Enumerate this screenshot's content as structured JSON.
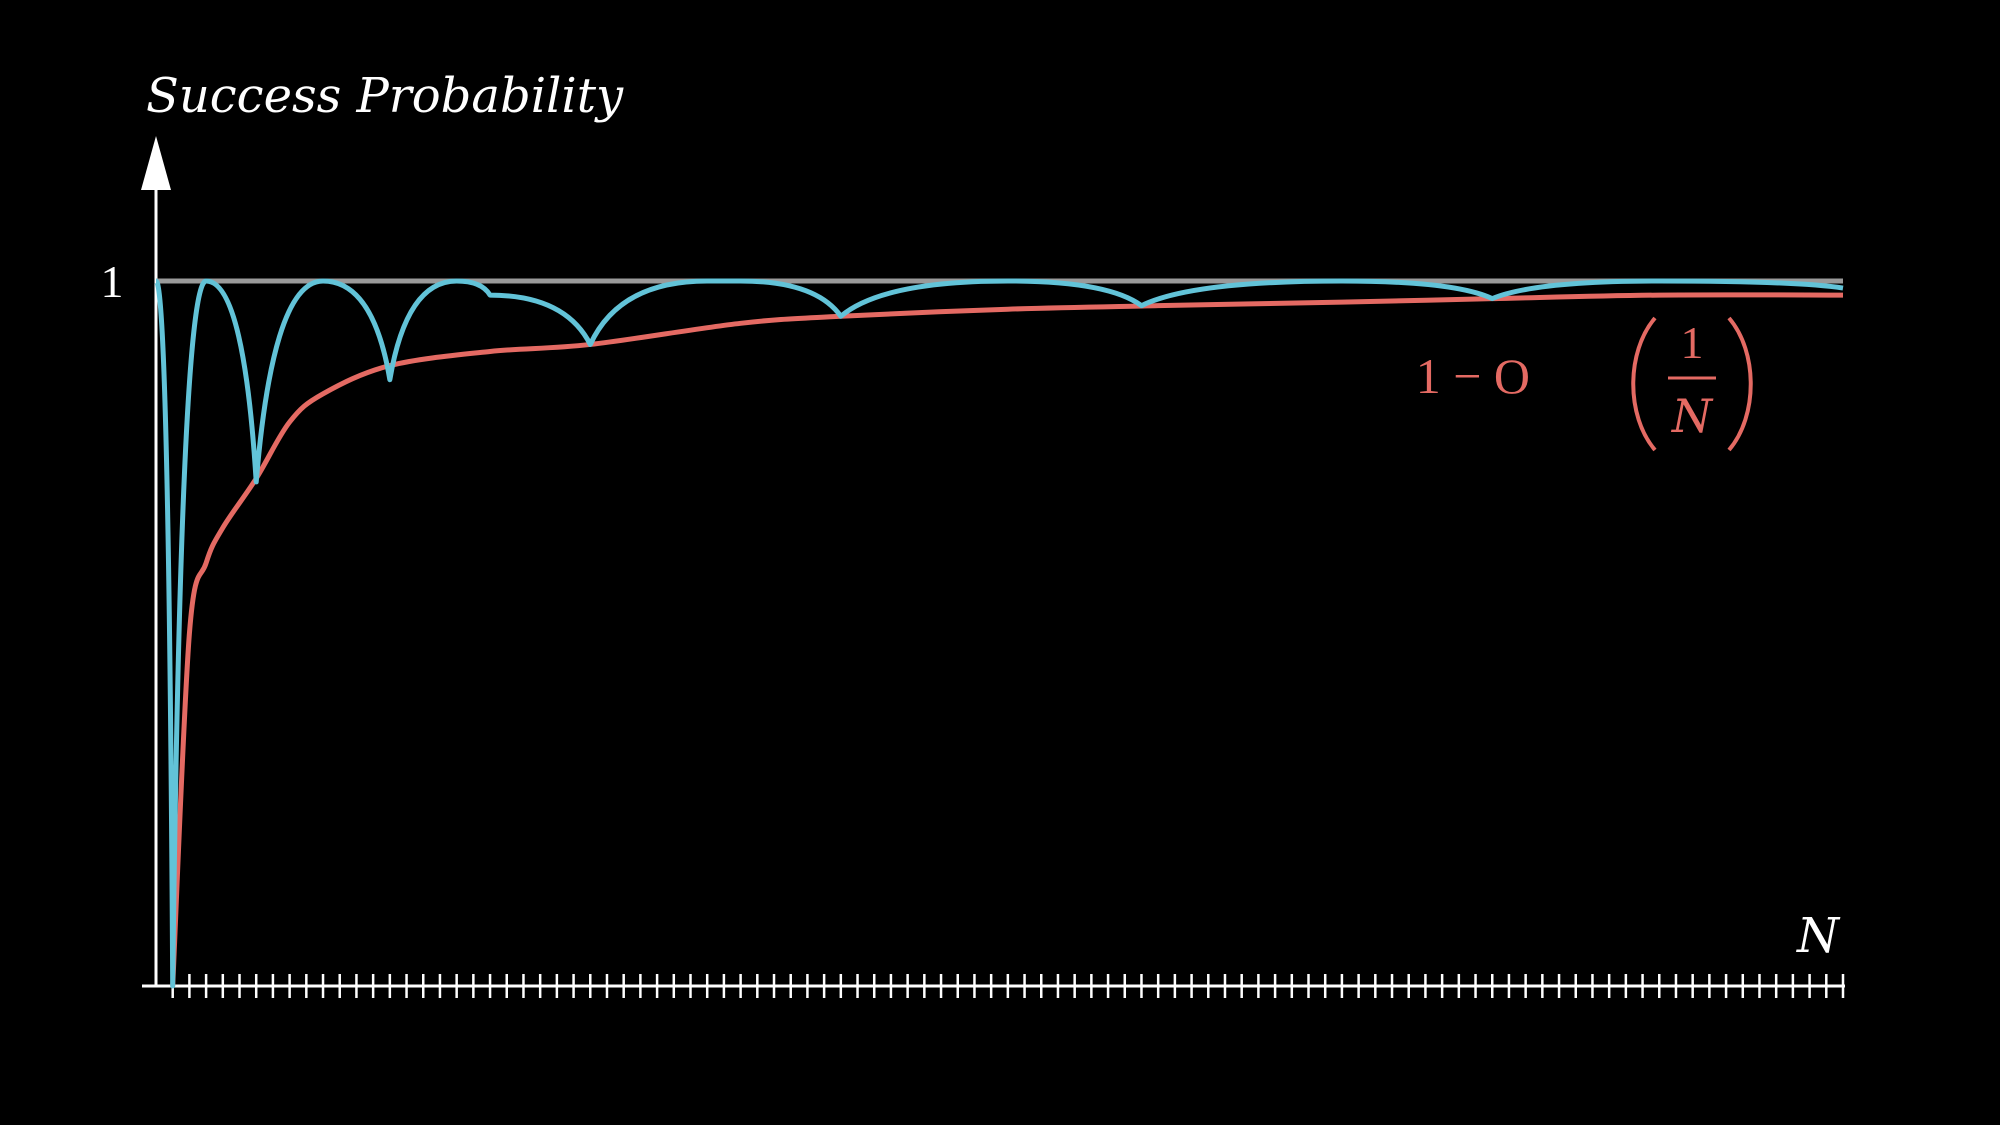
{
  "chart_data": {
    "type": "line",
    "title": "",
    "ylabel": "Success Probability",
    "xlabel": "N",
    "xlim": [
      0,
      101
    ],
    "ylim": [
      0,
      1
    ],
    "x_ticks": {
      "start": 0,
      "step": 1,
      "count": 102
    },
    "y_tick_labels": [
      {
        "value": 1,
        "label": "1"
      }
    ],
    "series": [
      {
        "name": "",
        "kind": "reference",
        "color": "#9a9a9a",
        "x": [
          0,
          101
        ],
        "y": [
          1,
          1
        ]
      },
      {
        "name": "",
        "kind": "oscillating",
        "color": "#62c3d8",
        "x": [
          0,
          1,
          3,
          6,
          10,
          14,
          18,
          20,
          26,
          33,
          35,
          41,
          51,
          59,
          71,
          80,
          90,
          101
        ],
        "y": [
          1,
          0,
          1,
          0.715,
          1,
          0.86,
          1,
          0.98,
          0.91,
          1,
          1,
          0.95,
          1,
          0.965,
          1,
          0.975,
          1,
          0.99
        ]
      },
      {
        "name": "1 - O(1/N)",
        "kind": "bound",
        "color": "#e46a63",
        "curve_formula": "1 - 1/N^2 envelope",
        "x": [
          1,
          2,
          3,
          4,
          6,
          8,
          10,
          14,
          20,
          26,
          35,
          41,
          51,
          60,
          71,
          80,
          90,
          101
        ],
        "y": [
          0,
          0.5,
          0.6,
          0.65,
          0.72,
          0.8,
          0.84,
          0.88,
          0.9,
          0.91,
          0.94,
          0.95,
          0.96,
          0.965,
          0.97,
          0.975,
          0.98,
          0.98
        ]
      }
    ],
    "annotations": [
      {
        "text_prefix": "1 − O",
        "numerator": "1",
        "denominator": "N",
        "color": "#e46a63",
        "anchor_x": 100,
        "anchor_y": 0.85
      }
    ],
    "colors": {
      "background": "#000000",
      "axis": "#ffffff",
      "reference": "#9a9a9a",
      "oscillating": "#62c3d8",
      "bound": "#e46a63"
    },
    "grid": false,
    "legend": "none"
  }
}
